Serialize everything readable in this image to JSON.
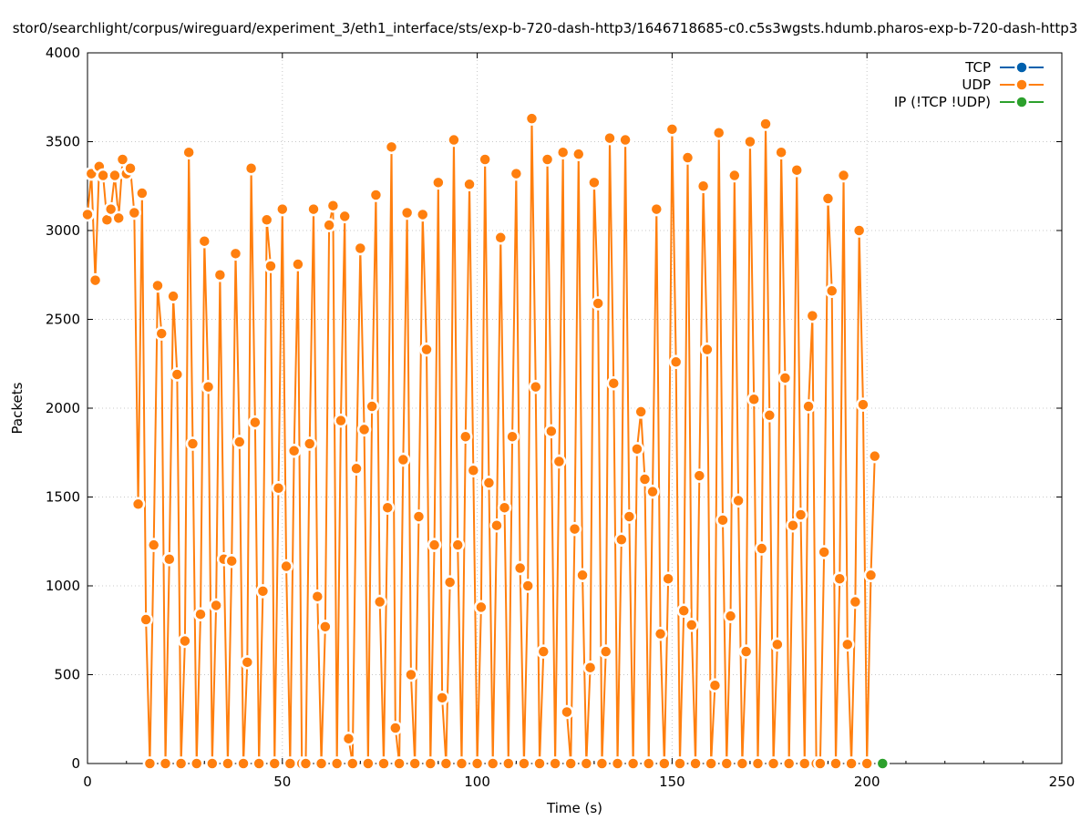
{
  "chart_data": {
    "type": "line",
    "title": "stor0/searchlight/corpus/wireguard/experiment_3/eth1_interface/sts/exp-b-720-dash-http3/1646718685-c0.c5s3wgsts.hdumb.pharos-exp-b-720-dash-http3",
    "xlabel": "Time (s)",
    "ylabel": "Packets",
    "xlim": [
      0,
      250
    ],
    "ylim": [
      0,
      4000
    ],
    "xticks": [
      0,
      50,
      100,
      150,
      200,
      250
    ],
    "yticks": [
      0,
      500,
      1000,
      1500,
      2000,
      2500,
      3000,
      3500,
      4000
    ],
    "grid": true,
    "legend_position": "top-right",
    "series": [
      {
        "name": "TCP",
        "color": "#0060ad",
        "x": [],
        "y": []
      },
      {
        "name": "UDP",
        "color": "#ff7f0e",
        "x": [
          0,
          1,
          2,
          3,
          4,
          5,
          6,
          7,
          8,
          9,
          10,
          11,
          12,
          13,
          14,
          15,
          16,
          17,
          18,
          19,
          20,
          21,
          22,
          23,
          24,
          25,
          26,
          27,
          28,
          29,
          30,
          31,
          32,
          33,
          34,
          35,
          36,
          37,
          38,
          39,
          40,
          41,
          42,
          43,
          44,
          45,
          46,
          47,
          48,
          49,
          50,
          51,
          52,
          53,
          54,
          55,
          56,
          57,
          58,
          59,
          60,
          61,
          62,
          63,
          64,
          65,
          66,
          67,
          68,
          69,
          70,
          71,
          72,
          73,
          74,
          75,
          76,
          77,
          78,
          79,
          80,
          81,
          82,
          83,
          84,
          85,
          86,
          87,
          88,
          89,
          90,
          91,
          92,
          93,
          94,
          95,
          96,
          97,
          98,
          99,
          100,
          101,
          102,
          103,
          104,
          105,
          106,
          107,
          108,
          109,
          110,
          111,
          112,
          113,
          114,
          115,
          116,
          117,
          118,
          119,
          120,
          121,
          122,
          123,
          124,
          125,
          126,
          127,
          128,
          129,
          130,
          131,
          132,
          133,
          134,
          135,
          136,
          137,
          138,
          139,
          140,
          141,
          142,
          143,
          144,
          145,
          146,
          147,
          148,
          149,
          150,
          151,
          152,
          153,
          154,
          155,
          156,
          157,
          158,
          159,
          160,
          161,
          162,
          163,
          164,
          165,
          166,
          167,
          168,
          169,
          170,
          171,
          172,
          173,
          174,
          175,
          176,
          177,
          178,
          179,
          180,
          181,
          182,
          183,
          184,
          185,
          186,
          187,
          188,
          189,
          190,
          191,
          192,
          193,
          194,
          195,
          196,
          197,
          198,
          199,
          200,
          201,
          202
        ],
        "y": [
          3090,
          3320,
          2720,
          3360,
          3310,
          3060,
          3120,
          3310,
          3070,
          3400,
          3320,
          3350,
          3100,
          1460,
          3210,
          810,
          0,
          1230,
          2690,
          2420,
          0,
          1150,
          2630,
          2190,
          0,
          690,
          3440,
          1800,
          0,
          840,
          2940,
          2120,
          0,
          890,
          2750,
          1150,
          0,
          1140,
          2870,
          1810,
          0,
          570,
          3350,
          1920,
          0,
          970,
          3060,
          2800,
          0,
          1550,
          3120,
          1110,
          0,
          1760,
          2810,
          0,
          0,
          1800,
          3120,
          940,
          0,
          770,
          3030,
          3140,
          0,
          1930,
          3080,
          140,
          0,
          1660,
          2900,
          1880,
          0,
          2010,
          3200,
          910,
          0,
          1440,
          3470,
          200,
          0,
          1710,
          3100,
          500,
          0,
          1390,
          3090,
          2330,
          0,
          1230,
          3270,
          370,
          0,
          1020,
          3510,
          1230,
          0,
          1840,
          3260,
          1650,
          0,
          880,
          3400,
          1580,
          0,
          1340,
          2960,
          1440,
          0,
          1840,
          3320,
          1100,
          0,
          1000,
          3630,
          2120,
          0,
          630,
          3400,
          1870,
          0,
          1700,
          3440,
          290,
          0,
          1320,
          3430,
          1060,
          0,
          540,
          3270,
          2590,
          0,
          630,
          3520,
          2140,
          0,
          1260,
          3510,
          1390,
          0,
          1770,
          1980,
          1600,
          0,
          1530,
          3120,
          730,
          0,
          1040,
          3570,
          2260,
          0,
          860,
          3410,
          780,
          0,
          1620,
          3250,
          2330,
          0,
          440,
          3550,
          1370,
          0,
          830,
          3310,
          1480,
          0,
          630,
          3500,
          2050,
          0,
          1210,
          3600,
          1960,
          0,
          670,
          3440,
          2170,
          0,
          1340,
          3340,
          1400,
          0,
          2010,
          2520,
          0,
          0,
          1190,
          3180,
          2660,
          0,
          1040,
          3310,
          670,
          0,
          910,
          3000,
          2020,
          0,
          1060,
          1730
        ]
      },
      {
        "name": "IP (!TCP  !UDP)",
        "color": "#2ca02c",
        "x": [
          204
        ],
        "y": [
          0
        ]
      }
    ]
  }
}
